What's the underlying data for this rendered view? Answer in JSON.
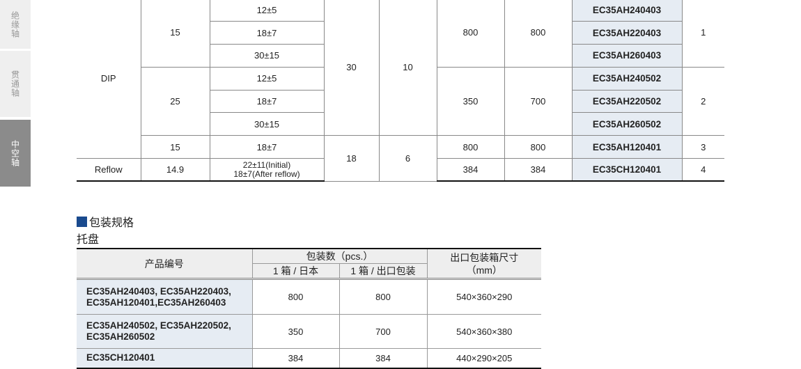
{
  "sidebar": {
    "items": [
      {
        "label": "绝缘轴",
        "active": false
      },
      {
        "label": "贯通轴",
        "active": false
      },
      {
        "label": "中空轴",
        "active": true
      }
    ]
  },
  "spec_table": {
    "rows": [
      [
        "DIP",
        "15",
        "12±5",
        "30",
        "10",
        "800",
        "800",
        "EC35AH240403",
        "1"
      ],
      [
        "18±7",
        "EC35AH220403"
      ],
      [
        "30±15",
        "EC35AH260403"
      ],
      [
        "25",
        "12±5",
        "350",
        "700",
        "EC35AH240502",
        "2"
      ],
      [
        "18±7",
        "EC35AH220502"
      ],
      [
        "30±15",
        "EC35AH260502"
      ],
      [
        "15",
        "18±7",
        "18",
        "6",
        "800",
        "800",
        "EC35AH120401",
        "3"
      ],
      [
        "Reflow",
        "14.9",
        "22±11(Initial)",
        "18±7(After reflow)",
        "384",
        "384",
        "EC35CH120401",
        "4"
      ]
    ]
  },
  "packaging": {
    "title": "包装规格",
    "subtitle": "托盘",
    "headers": {
      "product": "产品编号",
      "qty": "包装数（pcs.）",
      "japan": "1 箱 / 日本",
      "export": "1 箱 / 出口包装",
      "size": "出口包装箱尺寸",
      "size_unit": "（mm）"
    },
    "rows": [
      {
        "product": [
          "EC35AH240403, EC35AH220403,",
          "EC35AH120401,EC35AH260403"
        ],
        "japan": "800",
        "export": "800",
        "size": "540×360×290"
      },
      {
        "product": [
          "EC35AH240502, EC35AH220502,",
          "EC35AH260502"
        ],
        "japan": "350",
        "export": "700",
        "size": "540×360×380"
      },
      {
        "product": [
          "EC35CH120401"
        ],
        "japan": "384",
        "export": "384",
        "size": "440×290×205"
      }
    ]
  },
  "colors": {
    "accent": "#1a4a8e",
    "product_cell": "#e6ecf3",
    "sidebar_active": "#8b8b8b"
  }
}
